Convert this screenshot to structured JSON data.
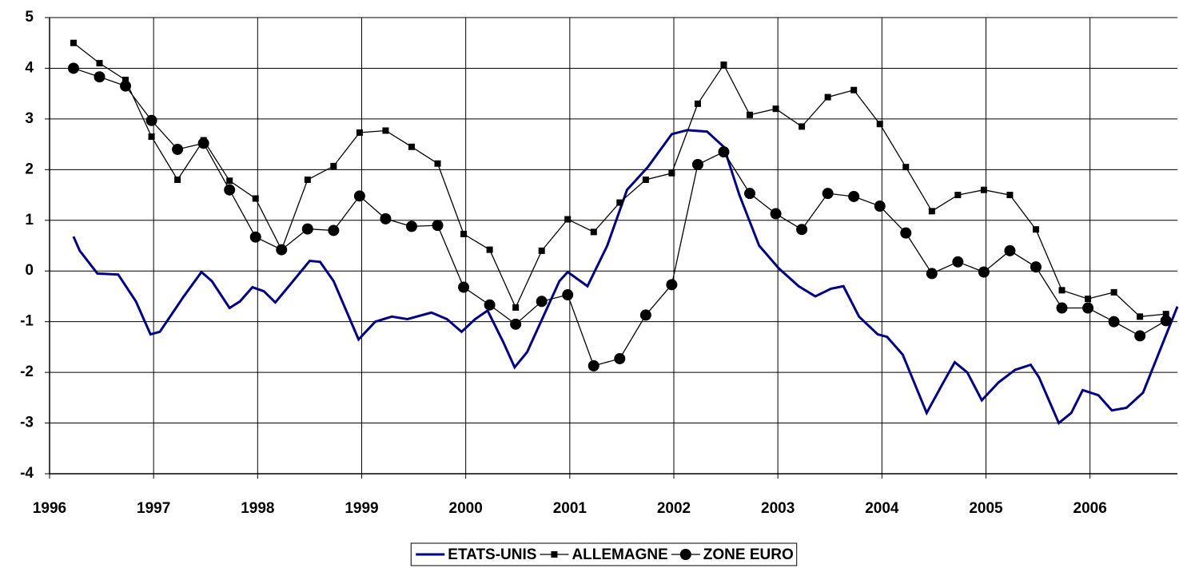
{
  "chart_data": {
    "type": "line",
    "x": [
      1996.23,
      1996.48,
      1996.73,
      1996.98,
      1997.23,
      1997.48,
      1997.73,
      1997.98,
      1998.23,
      1998.48,
      1998.73,
      1998.98,
      1999.23,
      1999.48,
      1999.73,
      1999.98,
      2000.23,
      2000.48,
      2000.73,
      2000.98,
      2001.23,
      2001.48,
      2001.73,
      2001.98,
      2002.23,
      2002.48,
      2002.73,
      2002.98,
      2003.23,
      2003.48,
      2003.73,
      2003.98,
      2004.23,
      2004.48,
      2004.73,
      2004.98,
      2005.23,
      2005.48,
      2005.73,
      2005.98,
      2006.23,
      2006.48,
      2006.73
    ],
    "series": [
      {
        "name": "ETATS-UNIS",
        "color": "#000080",
        "marker": "none",
        "x": [
          1996.23,
          1996.29,
          1996.46,
          1996.66,
          1996.83,
          1996.97,
          1997.06,
          1997.29,
          1997.46,
          1997.56,
          1997.73,
          1997.83,
          1997.95,
          1998.06,
          1998.17,
          1998.3,
          1998.5,
          1998.6,
          1998.73,
          1998.97,
          1999.13,
          1999.29,
          1999.44,
          1999.67,
          1999.82,
          1999.96,
          2000.09,
          2000.21,
          2000.36,
          2000.47,
          2000.59,
          2000.9,
          2000.98,
          2001.17,
          2001.36,
          2001.55,
          2001.75,
          2001.98,
          2002.13,
          2002.32,
          2002.48,
          2002.63,
          2002.82,
          2003.01,
          2003.2,
          2003.36,
          2003.51,
          2003.63,
          2003.78,
          2003.96,
          2004.05,
          2004.2,
          2004.43,
          2004.59,
          2004.7,
          2004.82,
          2004.96,
          2005.12,
          2005.28,
          2005.43,
          2005.51,
          2005.7,
          2005.82,
          2005.93,
          2006.08,
          2006.21,
          2006.35,
          2006.51,
          2006.84
        ],
        "values": [
          0.68,
          0.4,
          -0.05,
          -0.07,
          -0.6,
          -1.25,
          -1.2,
          -0.5,
          -0.02,
          -0.2,
          -0.73,
          -0.6,
          -0.32,
          -0.4,
          -0.62,
          -0.3,
          0.2,
          0.18,
          -0.2,
          -1.35,
          -1.0,
          -0.9,
          -0.95,
          -0.82,
          -0.95,
          -1.2,
          -0.95,
          -0.78,
          -1.4,
          -1.9,
          -1.6,
          -0.2,
          -0.02,
          -0.3,
          0.5,
          1.6,
          2.05,
          2.7,
          2.78,
          2.75,
          2.45,
          1.5,
          0.5,
          0.05,
          -0.3,
          -0.5,
          -0.35,
          -0.3,
          -0.9,
          -1.25,
          -1.3,
          -1.65,
          -2.8,
          -2.2,
          -1.8,
          -2.0,
          -2.55,
          -2.2,
          -1.95,
          -1.85,
          -2.1,
          -3.0,
          -2.8,
          -2.35,
          -2.45,
          -2.75,
          -2.7,
          -2.4,
          -0.7
        ]
      },
      {
        "name": "ALLEMAGNE",
        "color": "#000000",
        "marker": "square",
        "values": [
          4.5,
          4.1,
          3.77,
          2.65,
          1.8,
          2.58,
          1.78,
          1.43,
          0.42,
          1.8,
          2.07,
          2.73,
          2.77,
          2.45,
          2.12,
          0.73,
          0.42,
          -0.72,
          0.4,
          1.02,
          0.77,
          1.35,
          1.8,
          1.93,
          3.3,
          4.07,
          3.08,
          3.2,
          2.85,
          3.43,
          3.57,
          2.9,
          2.05,
          1.18,
          1.5,
          1.6,
          1.5,
          0.82,
          -0.38,
          -0.55,
          -0.42,
          -0.9,
          -0.85
        ]
      },
      {
        "name": "ZONE EURO",
        "color": "#000000",
        "marker": "circle",
        "values": [
          4.0,
          3.83,
          3.65,
          2.97,
          2.4,
          2.52,
          1.6,
          0.67,
          0.42,
          0.83,
          0.8,
          1.48,
          1.03,
          0.88,
          0.9,
          -0.32,
          -0.67,
          -1.05,
          -0.6,
          -0.47,
          -1.87,
          -1.73,
          -0.87,
          -0.27,
          2.1,
          2.35,
          1.53,
          1.13,
          0.82,
          1.53,
          1.47,
          1.28,
          0.75,
          -0.05,
          0.18,
          -0.02,
          0.4,
          0.08,
          -0.73,
          -0.73,
          -1.0,
          -1.28,
          -0.98
        ]
      }
    ],
    "xlim": [
      1996,
      2006.84
    ],
    "xticks": [
      1996,
      1997,
      1998,
      1999,
      2000,
      2001,
      2002,
      2003,
      2004,
      2005,
      2006
    ],
    "ylim": [
      -4,
      5
    ],
    "yticks": [
      -4,
      -3,
      -2,
      -1,
      0,
      1,
      2,
      3,
      4,
      5
    ],
    "grid": true,
    "legend": "bottom"
  }
}
